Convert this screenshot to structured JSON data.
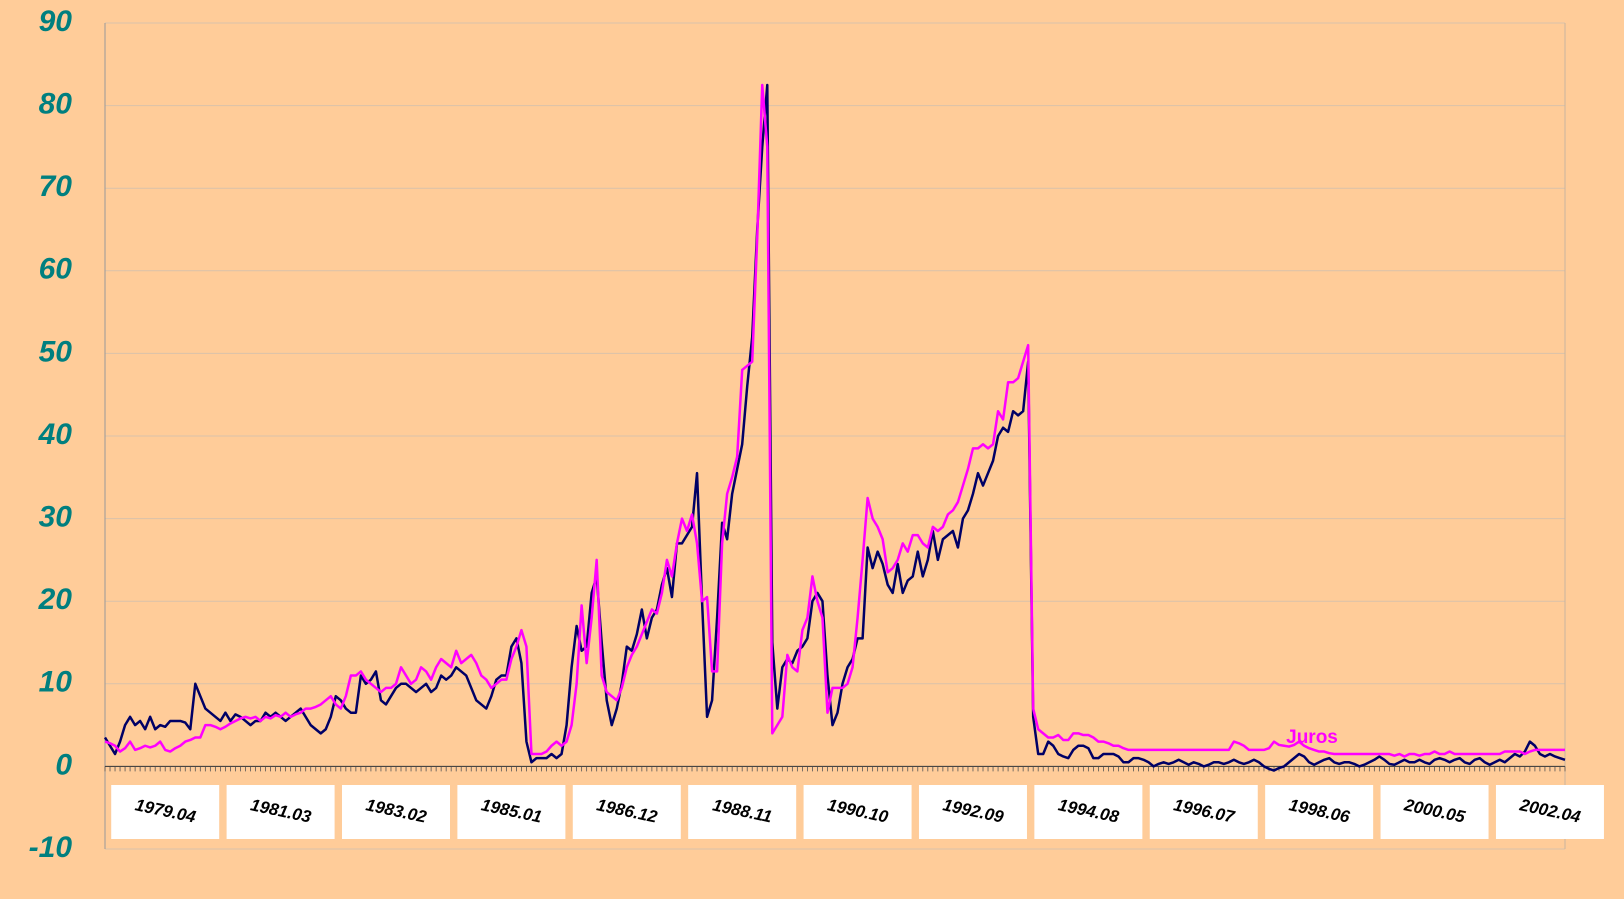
{
  "chart_data": {
    "type": "line",
    "categories": [
      null,
      null,
      null,
      null,
      null,
      null,
      null,
      null,
      null,
      null,
      null,
      null,
      "1979.04",
      null,
      null,
      null,
      null,
      null,
      null,
      null,
      null,
      null,
      null,
      null,
      null,
      null,
      null,
      null,
      null,
      null,
      null,
      null,
      null,
      null,
      null,
      "1981.03",
      null,
      null,
      null,
      null,
      null,
      null,
      null,
      null,
      null,
      null,
      null,
      null,
      null,
      null,
      null,
      null,
      null,
      null,
      null,
      null,
      null,
      null,
      "1983.02",
      null,
      null,
      null,
      null,
      null,
      null,
      null,
      null,
      null,
      null,
      null,
      null,
      null,
      null,
      null,
      null,
      null,
      null,
      null,
      null,
      null,
      null,
      "1985.01",
      null,
      null,
      null,
      null,
      null,
      null,
      null,
      null,
      null,
      null,
      null,
      null,
      null,
      null,
      null,
      null,
      null,
      null,
      null,
      null,
      null,
      null,
      "1986.12",
      null,
      null,
      null,
      null,
      null,
      null,
      null,
      null,
      null,
      null,
      null,
      null,
      null,
      null,
      null,
      null,
      null,
      null,
      null,
      null,
      null,
      null,
      "1988.11",
      null,
      null,
      null,
      null,
      null,
      null,
      null,
      null,
      null,
      null,
      null,
      null,
      null,
      null,
      null,
      null,
      null,
      null,
      null,
      null,
      null,
      null,
      "1990.10",
      null,
      null,
      null,
      null,
      null,
      null,
      null,
      null,
      null,
      null,
      null,
      null,
      null,
      null,
      null,
      null,
      null,
      null,
      null,
      null,
      null,
      null,
      "1992.09",
      null,
      null,
      null,
      null,
      null,
      null,
      null,
      null,
      null,
      null,
      null,
      null,
      null,
      null,
      null,
      null,
      null,
      null,
      null,
      null,
      null,
      null,
      "1994.08",
      null,
      null,
      null,
      null,
      null,
      null,
      null,
      null,
      null,
      null,
      null,
      null,
      null,
      null,
      null,
      null,
      null,
      null,
      null,
      null,
      null,
      null,
      "1996.07",
      null,
      null,
      null,
      null,
      null,
      null,
      null,
      null,
      null,
      null,
      null,
      null,
      null,
      null,
      null,
      null,
      null,
      null,
      null,
      null,
      null,
      null,
      "1998.06",
      null,
      null,
      null,
      null,
      null,
      null,
      null,
      null,
      null,
      null,
      null,
      null,
      null,
      null,
      null,
      null,
      null,
      null,
      null,
      null,
      null,
      null,
      "2000.05",
      null,
      null,
      null,
      null,
      null,
      null,
      null,
      null,
      null,
      null,
      null,
      null,
      null,
      null,
      null,
      null,
      null,
      null,
      null,
      null,
      null,
      null,
      "2002.04",
      null,
      null,
      null
    ],
    "series": [
      {
        "color": "#000066",
        "values": [
          3.5,
          2.5,
          1.5,
          3,
          5,
          6,
          5,
          5.5,
          4.5,
          6,
          4.5,
          5,
          4.8,
          5.5,
          5.5,
          5.5,
          5.3,
          4.5,
          10,
          8.5,
          7,
          6.5,
          6,
          5.5,
          6.5,
          5.5,
          6.3,
          6,
          5.5,
          5,
          5.5,
          5.5,
          6.5,
          6,
          6.5,
          6,
          5.5,
          6,
          6.5,
          7,
          6,
          5,
          4.5,
          4,
          4.5,
          6,
          8.5,
          8,
          7,
          6.5,
          6.5,
          11,
          10,
          10.5,
          11.5,
          8,
          7.5,
          8.5,
          9.5,
          10,
          10,
          9.5,
          9,
          9.5,
          10,
          9,
          9.5,
          11,
          10.5,
          11,
          12,
          11.5,
          11,
          9.5,
          8,
          7.5,
          7,
          8.5,
          10.5,
          11,
          11,
          14.5,
          15.5,
          12.5,
          3,
          0.5,
          1,
          1,
          1,
          1.5,
          1,
          1.5,
          5,
          12,
          17,
          14,
          14.5,
          21,
          23,
          15,
          8,
          5,
          7,
          10,
          14.5,
          14,
          16,
          19,
          15.5,
          18,
          19,
          22,
          24,
          20.5,
          27,
          27,
          28,
          29,
          35.5,
          20,
          6,
          8,
          18,
          29.5,
          27.5,
          33,
          36,
          39,
          46,
          52,
          65,
          75,
          82.5,
          15,
          7,
          12,
          13,
          12.5,
          14,
          14.5,
          15.5,
          20,
          21,
          20,
          11,
          5,
          6.5,
          10,
          12,
          13,
          15.5,
          15.5,
          26.5,
          24,
          26,
          24.5,
          22,
          21,
          24.5,
          21,
          22.5,
          23,
          26,
          23,
          25,
          28.5,
          25,
          27.5,
          28,
          28.5,
          26.5,
          30,
          31,
          33,
          35.5,
          34,
          35.5,
          37,
          40,
          41,
          40.5,
          43,
          42.5,
          43,
          49,
          6,
          1.5,
          1.5,
          3,
          2.5,
          1.5,
          1.2,
          1,
          2,
          2.5,
          2.5,
          2.2,
          1,
          1,
          1.5,
          1.5,
          1.5,
          1.2,
          0.5,
          0.5,
          1,
          1,
          0.8,
          0.5,
          0,
          0.3,
          0.5,
          0.3,
          0.5,
          0.8,
          0.5,
          0.2,
          0.5,
          0.3,
          0,
          0.2,
          0.5,
          0.5,
          0.3,
          0.5,
          0.8,
          0.5,
          0.3,
          0.5,
          0.8,
          0.5,
          0,
          -0.3,
          -0.5,
          -0.2,
          0,
          0.5,
          1,
          1.5,
          1.2,
          0.5,
          0.2,
          0.5,
          0.8,
          1,
          0.5,
          0.3,
          0.5,
          0.5,
          0.3,
          0,
          0.2,
          0.5,
          0.8,
          1.2,
          0.8,
          0.3,
          0.2,
          0.5,
          0.8,
          0.5,
          0.5,
          0.8,
          0.5,
          0.3,
          0.8,
          1,
          0.8,
          0.5,
          0.8,
          1,
          0.5,
          0.3,
          0.8,
          1,
          0.5,
          0.2,
          0.5,
          0.8,
          0.5,
          1,
          1.5,
          1.2,
          1.8,
          3,
          2.5,
          1.5,
          1.2,
          1.5,
          1.2,
          1,
          0.8
        ]
      },
      {
        "name": "Juros",
        "color": "#ff00ff",
        "values": [
          3,
          2.8,
          2.5,
          1.8,
          2.2,
          3,
          2,
          2.2,
          2.5,
          2.3,
          2.5,
          3,
          2,
          1.8,
          2.2,
          2.5,
          3,
          3.2,
          3.5,
          3.5,
          5,
          5,
          4.8,
          4.5,
          4.8,
          5.2,
          5.5,
          5.8,
          6,
          5.8,
          6,
          5.5,
          6,
          5.8,
          6.2,
          6,
          6.5,
          6,
          6.3,
          6.5,
          7,
          7,
          7.2,
          7.5,
          8,
          8.5,
          7.5,
          7,
          8.5,
          11,
          11,
          11.5,
          10.5,
          10,
          9.5,
          9,
          9.5,
          9.5,
          10,
          12,
          11,
          10,
          10.5,
          12,
          11.5,
          10.5,
          12,
          13,
          12.5,
          12,
          14,
          12.5,
          13,
          13.5,
          12.5,
          11,
          10.5,
          9.5,
          10,
          10.5,
          10.5,
          13,
          14.5,
          16.5,
          14.5,
          1.5,
          1.5,
          1.5,
          1.8,
          2.5,
          3,
          2.5,
          3,
          5,
          10,
          19.5,
          12.5,
          18,
          25,
          11,
          9,
          8.5,
          8,
          9.5,
          12,
          13.5,
          14.5,
          16,
          17.5,
          19,
          18.5,
          21,
          25,
          23,
          27,
          30,
          28.5,
          30.5,
          27,
          20,
          20.5,
          11.5,
          11.5,
          27,
          33,
          35,
          37.5,
          48,
          48.5,
          49,
          64,
          82.5,
          75,
          4,
          5,
          6,
          13.5,
          12,
          11.5,
          16.5,
          18,
          23,
          20,
          18,
          6.5,
          9.5,
          9.5,
          9.5,
          10,
          12,
          18,
          25,
          32.5,
          30,
          29,
          27.5,
          23.5,
          24,
          25,
          27,
          26,
          28,
          28,
          27,
          26.5,
          29,
          28.5,
          29,
          30.5,
          31,
          32,
          34,
          36,
          38.5,
          38.5,
          39,
          38.5,
          39,
          43,
          42,
          46.5,
          46.5,
          47,
          49,
          51,
          7,
          4.5,
          4,
          3.5,
          3.5,
          3.8,
          3.2,
          3.2,
          4,
          4,
          3.8,
          3.8,
          3.5,
          3,
          3,
          2.8,
          2.5,
          2.5,
          2.2,
          2,
          2,
          2,
          2,
          2,
          2,
          2,
          2,
          2,
          2,
          2,
          2,
          2,
          2,
          2,
          2,
          2,
          2,
          2,
          2,
          2,
          3,
          2.8,
          2.5,
          2,
          2,
          2,
          2,
          2.2,
          3,
          2.6,
          2.5,
          2.4,
          2.6,
          3,
          2.5,
          2.2,
          2,
          1.8,
          1.8,
          1.6,
          1.5,
          1.5,
          1.5,
          1.5,
          1.5,
          1.5,
          1.5,
          1.5,
          1.5,
          1.5,
          1.5,
          1.5,
          1.3,
          1.5,
          1.2,
          1.5,
          1.5,
          1.3,
          1.5,
          1.5,
          1.8,
          1.5,
          1.5,
          1.8,
          1.5,
          1.5,
          1.5,
          1.5,
          1.5,
          1.5,
          1.5,
          1.5,
          1.5,
          1.5,
          1.8,
          1.8,
          1.8,
          1.8,
          1.5,
          1.8,
          2,
          2,
          2,
          2,
          2,
          2,
          2
        ]
      }
    ],
    "ylim": [
      -10,
      90
    ],
    "yticks": [
      -10,
      0,
      10,
      20,
      30,
      40,
      50,
      60,
      70,
      80,
      90
    ],
    "grid": true
  }
}
